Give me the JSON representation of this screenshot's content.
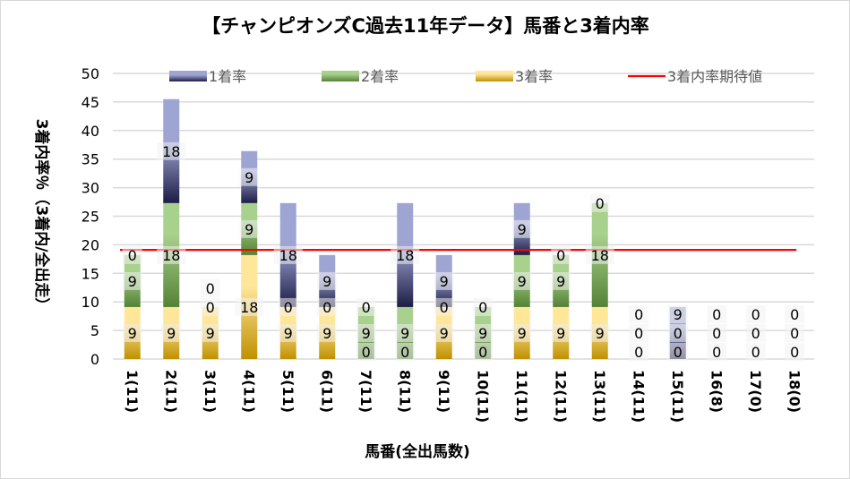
{
  "chart_data": {
    "type": "bar",
    "stacked": true,
    "title": "【チャンピオンズC過去11年データ】馬番と3着内率",
    "xlabel": "馬番(全出馬数)",
    "ylabel": "3着内率％（3着内/全出走）",
    "ylim": [
      0,
      50
    ],
    "yticks": [
      0,
      5,
      10,
      15,
      20,
      25,
      30,
      35,
      40,
      45,
      50
    ],
    "grid": true,
    "legend_position": "top",
    "categories": [
      "1(11)",
      "2(11)",
      "3(11)",
      "4(11)",
      "5(11)",
      "6(11)",
      "7(11)",
      "8(11)",
      "9(11)",
      "10(11)",
      "11(11)",
      "12(11)",
      "13(11)",
      "14(11)",
      "15(11)",
      "16(8)",
      "17(0)",
      "18(0)"
    ],
    "series": [
      {
        "name": "3着率",
        "values": [
          9.1,
          9.1,
          9.1,
          18.2,
          9.1,
          9.1,
          0,
          0,
          9.1,
          0,
          9.1,
          9.1,
          9.1,
          0,
          0,
          0,
          0,
          0
        ],
        "color_top": "#ffe699",
        "color_bottom": "#bf9000"
      },
      {
        "name": "2着率",
        "values": [
          9.1,
          18.2,
          0,
          9.1,
          0,
          0,
          9.1,
          9.1,
          0,
          9.1,
          9.1,
          9.1,
          18.2,
          0,
          0,
          0,
          0,
          0
        ],
        "color_top": "#a9d18e",
        "color_bottom": "#548235"
      },
      {
        "name": "1着率",
        "values": [
          0,
          18.2,
          0,
          9.1,
          18.2,
          9.1,
          0,
          18.2,
          9.1,
          0,
          9.1,
          0,
          0,
          0,
          9.1,
          0,
          0,
          0
        ],
        "color_top": "#9fa5d3",
        "color_bottom": "#1c1d45"
      }
    ],
    "reference_line": {
      "name": "3着内率期待値",
      "value": 19.1,
      "color": "#ff0000"
    },
    "legend_order": [
      "1着率",
      "2着率",
      "3着率",
      "3着内率期待値"
    ]
  }
}
